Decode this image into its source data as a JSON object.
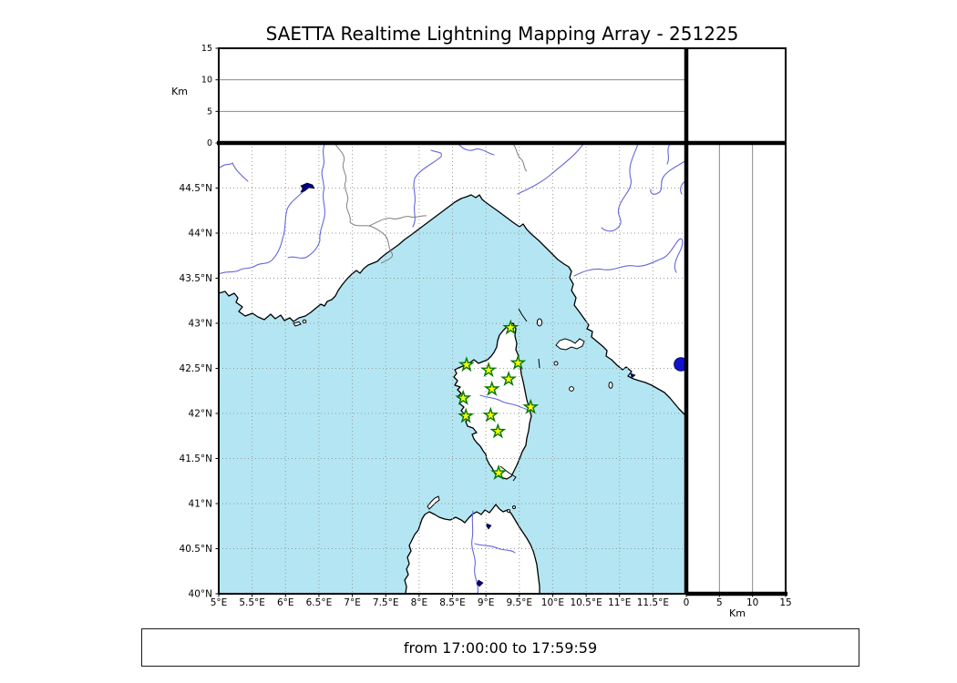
{
  "title": "SAETTA Realtime Lightning Mapping Array - 251225",
  "footer": {
    "text": "from 17:00:00 to 17:59:59"
  },
  "colors": {
    "sea": "#b3e6f2",
    "land": "#ffffff",
    "coast": "#000000",
    "river": "#6666dd",
    "border_line": "#808080",
    "grid": "#999999",
    "lake": "#000080",
    "lake_bolsena": "#1212cc",
    "station_fill": "#ffff00",
    "station_edge": "#007700"
  },
  "map_panel": {
    "lon_min": 5,
    "lon_max": 12,
    "lat_min": 40,
    "lat_max": 45,
    "lon_ticks": [
      {
        "v": 5,
        "label": "5°E"
      },
      {
        "v": 5.5,
        "label": "5.5°E"
      },
      {
        "v": 6,
        "label": "6°E"
      },
      {
        "v": 6.5,
        "label": "6.5°E"
      },
      {
        "v": 7,
        "label": "7°E"
      },
      {
        "v": 7.5,
        "label": "7.5°E"
      },
      {
        "v": 8,
        "label": "8°E"
      },
      {
        "v": 8.5,
        "label": "8.5°E"
      },
      {
        "v": 9,
        "label": "9°E"
      },
      {
        "v": 9.5,
        "label": "9.5°E"
      },
      {
        "v": 10,
        "label": "10°E"
      },
      {
        "v": 10.5,
        "label": "10.5°E"
      },
      {
        "v": 11,
        "label": "11°E"
      },
      {
        "v": 11.5,
        "label": "11.5°E"
      }
    ],
    "lat_ticks": [
      {
        "v": 40,
        "label": "40°N"
      },
      {
        "v": 40.5,
        "label": "40.5°N"
      },
      {
        "v": 41,
        "label": "41°N"
      },
      {
        "v": 41.5,
        "label": "41.5°N"
      },
      {
        "v": 42,
        "label": "42°N"
      },
      {
        "v": 42.5,
        "label": "42.5°N"
      },
      {
        "v": 43,
        "label": "43°N"
      },
      {
        "v": 43.5,
        "label": "43.5°N"
      },
      {
        "v": 44,
        "label": "44°N"
      },
      {
        "v": 44.5,
        "label": "44.5°N"
      }
    ]
  },
  "altitude_axis": {
    "unit": "Km",
    "min": 0,
    "max": 15,
    "ticks": [
      {
        "v": 0,
        "label": "0"
      },
      {
        "v": 5,
        "label": "5"
      },
      {
        "v": 10,
        "label": "10"
      },
      {
        "v": 15,
        "label": "15"
      }
    ],
    "gridlines": [
      5,
      10
    ]
  },
  "stations": [
    {
      "lon": 9.37,
      "lat": 42.95
    },
    {
      "lon": 8.71,
      "lat": 42.54
    },
    {
      "lon": 9.04,
      "lat": 42.48
    },
    {
      "lon": 9.48,
      "lat": 42.56
    },
    {
      "lon": 9.34,
      "lat": 42.38
    },
    {
      "lon": 9.09,
      "lat": 42.27
    },
    {
      "lon": 8.66,
      "lat": 42.17
    },
    {
      "lon": 9.67,
      "lat": 42.07
    },
    {
      "lon": 9.07,
      "lat": 41.98
    },
    {
      "lon": 8.7,
      "lat": 41.97
    },
    {
      "lon": 9.18,
      "lat": 41.8
    },
    {
      "lon": 9.19,
      "lat": 41.34
    }
  ],
  "lightning_sources": []
}
